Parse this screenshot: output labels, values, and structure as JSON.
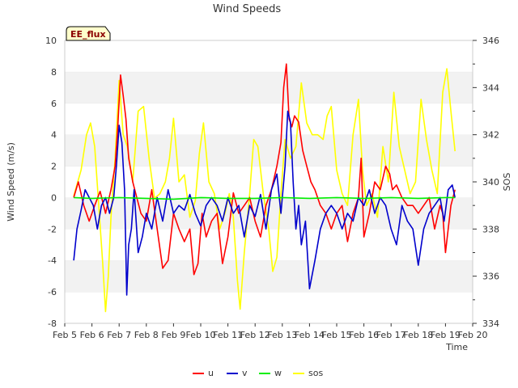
{
  "chart_data": {
    "type": "line",
    "title": "Wind Speeds",
    "xlabel": "Time",
    "ylabel": "Wind Speed (m/s)",
    "y2label": "SOS",
    "badge": "EE_flux",
    "xlim": [
      5,
      20
    ],
    "ylim": [
      -8,
      10
    ],
    "y2lim": [
      334,
      346
    ],
    "x_ticks": [
      5,
      6,
      7,
      8,
      9,
      10,
      11,
      12,
      13,
      14,
      15,
      16,
      17,
      18,
      19,
      20
    ],
    "x_tick_labels": [
      "Feb 5",
      "Feb 6",
      "Feb 7",
      "Feb 8",
      "Feb 9",
      "Feb 10",
      "Feb 11",
      "Feb 12",
      "Feb 13",
      "Feb 14",
      "Feb 15",
      "Feb 16",
      "Feb 17",
      "Feb 18",
      "Feb 19",
      "Feb 20"
    ],
    "y_ticks": [
      -8,
      -6,
      -4,
      -2,
      0,
      2,
      4,
      6,
      8,
      10
    ],
    "y2_ticks": [
      334,
      336,
      338,
      340,
      342,
      344,
      346
    ],
    "grid": "horizontal bands",
    "legend_position": "bottom",
    "series": [
      {
        "name": "u",
        "color": "#ff0000",
        "axis": "left",
        "x": [
          5.33,
          5.5,
          5.7,
          5.9,
          6.1,
          6.3,
          6.5,
          6.7,
          6.85,
          6.95,
          7.05,
          7.15,
          7.25,
          7.35,
          7.5,
          7.65,
          7.8,
          8.0,
          8.2,
          8.4,
          8.6,
          8.8,
          9.0,
          9.2,
          9.4,
          9.6,
          9.75,
          9.9,
          10.05,
          10.2,
          10.4,
          10.6,
          10.8,
          11.0,
          11.2,
          11.4,
          11.6,
          11.8,
          12.0,
          12.2,
          12.4,
          12.6,
          12.8,
          12.95,
          13.05,
          13.15,
          13.25,
          13.35,
          13.45,
          13.6,
          13.75,
          13.9,
          14.05,
          14.2,
          14.4,
          14.6,
          14.8,
          15.0,
          15.2,
          15.4,
          15.6,
          15.8,
          15.9,
          16.0,
          16.2,
          16.4,
          16.6,
          16.8,
          16.95,
          17.05,
          17.2,
          17.4,
          17.6,
          17.8,
          18.0,
          18.2,
          18.4,
          18.6,
          18.8,
          18.9,
          19.0,
          19.2,
          19.35
        ],
        "y": [
          0.0,
          1.0,
          -0.5,
          -1.5,
          -0.5,
          0.4,
          -1.0,
          0.5,
          2.0,
          4.5,
          7.8,
          6.5,
          5.0,
          2.5,
          1.0,
          0.0,
          -1.0,
          -1.5,
          0.5,
          -2.0,
          -4.5,
          -4.0,
          -1.0,
          -2.0,
          -2.8,
          -2.0,
          -4.9,
          -4.2,
          -1.0,
          -2.5,
          -1.5,
          -1.0,
          -4.2,
          -2.5,
          0.3,
          -1.0,
          -0.5,
          0.0,
          -1.5,
          -2.5,
          -0.5,
          0.5,
          2.0,
          3.5,
          7.0,
          8.5,
          5.0,
          4.5,
          5.2,
          4.8,
          3.0,
          2.0,
          1.0,
          0.5,
          -0.5,
          -1.0,
          -2.0,
          -1.0,
          -0.5,
          -2.8,
          -1.0,
          0.0,
          2.5,
          -2.5,
          -1.0,
          1.0,
          0.5,
          2.0,
          1.5,
          0.5,
          0.8,
          0.0,
          -0.5,
          -0.5,
          -1.0,
          -0.5,
          0.0,
          -2.0,
          -0.5,
          -1.0,
          -3.5,
          -0.5,
          0.5
        ]
      },
      {
        "name": "v",
        "color": "#0000cc",
        "axis": "left",
        "x": [
          5.33,
          5.45,
          5.6,
          5.75,
          5.9,
          6.05,
          6.2,
          6.35,
          6.5,
          6.65,
          6.8,
          6.9,
          7.0,
          7.1,
          7.2,
          7.28,
          7.35,
          7.45,
          7.55,
          7.7,
          7.85,
          8.0,
          8.2,
          8.4,
          8.6,
          8.8,
          9.0,
          9.2,
          9.4,
          9.6,
          9.8,
          10.0,
          10.2,
          10.4,
          10.6,
          10.8,
          11.0,
          11.2,
          11.4,
          11.6,
          11.8,
          12.0,
          12.2,
          12.4,
          12.6,
          12.8,
          12.95,
          13.1,
          13.2,
          13.3,
          13.4,
          13.5,
          13.6,
          13.7,
          13.85,
          14.0,
          14.2,
          14.4,
          14.6,
          14.8,
          15.0,
          15.2,
          15.4,
          15.6,
          15.8,
          16.0,
          16.2,
          16.4,
          16.6,
          16.8,
          17.0,
          17.2,
          17.4,
          17.6,
          17.8,
          18.0,
          18.2,
          18.4,
          18.6,
          18.8,
          18.95,
          19.1,
          19.25,
          19.35
        ],
        "y": [
          -4.0,
          -2.0,
          -0.8,
          0.5,
          0.0,
          -0.5,
          -2.0,
          -0.5,
          0.0,
          -1.0,
          0.0,
          2.0,
          4.6,
          3.5,
          0.5,
          -6.2,
          -3.0,
          -2.0,
          0.5,
          -3.5,
          -2.5,
          -1.0,
          -2.0,
          0.0,
          -1.5,
          0.5,
          -1.0,
          -0.5,
          -0.8,
          0.2,
          -1.0,
          -1.8,
          -0.5,
          0.0,
          -0.5,
          -1.5,
          0.0,
          -1.0,
          -0.5,
          -2.5,
          -0.5,
          -1.2,
          0.2,
          -2.0,
          0.5,
          1.5,
          -1.0,
          2.0,
          5.5,
          4.8,
          1.0,
          -2.0,
          -0.5,
          -3.0,
          -1.5,
          -5.8,
          -4.0,
          -2.0,
          -1.0,
          -0.5,
          -1.0,
          -2.0,
          -1.0,
          -1.5,
          0.0,
          -0.5,
          0.5,
          -1.0,
          0.0,
          -0.5,
          -2.0,
          -3.0,
          -0.5,
          -1.5,
          -2.0,
          -4.3,
          -2.0,
          -1.0,
          -0.5,
          0.0,
          -1.5,
          0.5,
          0.8,
          0.0
        ]
      },
      {
        "name": "w",
        "color": "#00ee00",
        "axis": "left",
        "x": [
          5.33,
          6.0,
          7.0,
          8.0,
          9.0,
          10.0,
          11.0,
          12.0,
          13.0,
          14.0,
          15.0,
          16.0,
          17.0,
          18.0,
          19.0,
          19.35
        ],
        "y": [
          0.0,
          -0.05,
          0.0,
          -0.05,
          -0.1,
          0.0,
          -0.05,
          -0.05,
          0.0,
          -0.05,
          0.0,
          -0.05,
          0.0,
          -0.05,
          0.0,
          0.0
        ]
      },
      {
        "name": "sos",
        "color": "#ffff00",
        "axis": "right",
        "x": [
          5.33,
          5.6,
          5.8,
          5.95,
          6.1,
          6.25,
          6.4,
          6.5,
          6.6,
          6.7,
          6.85,
          7.0,
          7.15,
          7.3,
          7.5,
          7.7,
          7.9,
          8.1,
          8.3,
          8.5,
          8.7,
          8.85,
          9.0,
          9.2,
          9.4,
          9.6,
          9.8,
          9.95,
          10.1,
          10.3,
          10.5,
          10.7,
          10.9,
          11.05,
          11.2,
          11.35,
          11.45,
          11.6,
          11.8,
          11.95,
          12.1,
          12.3,
          12.5,
          12.65,
          12.8,
          12.95,
          13.1,
          13.3,
          13.5,
          13.7,
          13.9,
          14.1,
          14.3,
          14.5,
          14.65,
          14.8,
          15.0,
          15.2,
          15.4,
          15.6,
          15.8,
          15.95,
          16.1,
          16.3,
          16.5,
          16.7,
          16.9,
          17.1,
          17.3,
          17.5,
          17.7,
          17.9,
          18.1,
          18.3,
          18.5,
          18.7,
          18.9,
          19.05,
          19.2,
          19.35
        ],
        "y": [
          339.4,
          340.5,
          342.0,
          342.5,
          341.5,
          339.0,
          336.5,
          334.5,
          336.0,
          338.5,
          341.0,
          344.3,
          342.0,
          341.5,
          340.0,
          343.0,
          343.2,
          341.0,
          339.3,
          339.5,
          340.0,
          341.0,
          342.7,
          340.0,
          340.3,
          338.5,
          339.2,
          341.2,
          342.5,
          340.0,
          339.5,
          338.0,
          338.7,
          339.5,
          338.5,
          335.8,
          334.6,
          337.0,
          339.5,
          341.8,
          341.5,
          339.5,
          338.0,
          336.2,
          336.8,
          339.5,
          341.8,
          341.0,
          341.5,
          344.2,
          342.5,
          342.0,
          342.0,
          341.8,
          342.8,
          343.2,
          340.5,
          339.5,
          339.0,
          342.0,
          343.5,
          340.5,
          339.0,
          339.5,
          338.5,
          341.5,
          340.0,
          343.8,
          341.5,
          340.5,
          339.5,
          340.0,
          343.5,
          341.8,
          340.5,
          339.5,
          343.8,
          344.8,
          343.0,
          341.3
        ]
      }
    ]
  }
}
